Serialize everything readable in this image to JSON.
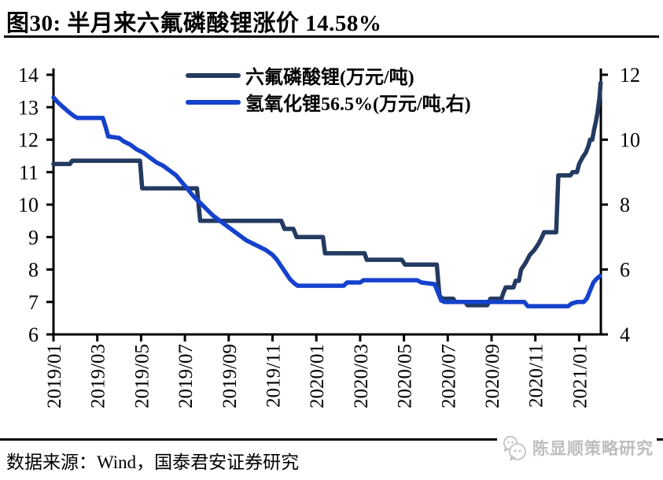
{
  "page": {
    "title": "图30: 半月来六氟磷酸锂涨价 14.58%",
    "source_note": "数据来源：Wind，国泰君安证券研究",
    "watermark": "陈显顺策略研究"
  },
  "colors": {
    "series_lipf6": "#243a60",
    "series_lioh": "#1542cc",
    "axis": "#000000",
    "watermark_gray": "#bdbdbd"
  },
  "chart_data": {
    "type": "line",
    "title": "图30: 半月来六氟磷酸锂涨价 14.58%",
    "xlabel": "",
    "ylabel_left": "万元/吨",
    "ylabel_right": "万元/吨",
    "grid": false,
    "legend_position": "top-center",
    "x_tick_labels": [
      "2019/01",
      "2019/03",
      "2019/05",
      "2019/07",
      "2019/09",
      "2019/11",
      "2020/01",
      "2020/03",
      "2020/05",
      "2020/07",
      "2020/09",
      "2020/11",
      "2021/01"
    ],
    "y_left": {
      "ticks": [
        14,
        13,
        12,
        11,
        10,
        9,
        8,
        7,
        6
      ],
      "range": [
        6,
        14
      ]
    },
    "y_right": {
      "ticks": [
        12,
        10,
        8,
        6,
        4
      ],
      "range": [
        4,
        12
      ]
    },
    "series": [
      {
        "name": "六氟磷酸锂(万元/吨)",
        "axis": "left",
        "color": "#243a60",
        "points": [
          [
            0,
            11.25
          ],
          [
            0.75,
            11.25
          ],
          [
            0.85,
            11.35
          ],
          [
            3.95,
            11.35
          ],
          [
            4.05,
            10.5
          ],
          [
            6.55,
            10.5
          ],
          [
            6.7,
            9.5
          ],
          [
            10.4,
            9.5
          ],
          [
            10.55,
            9.25
          ],
          [
            10.95,
            9.25
          ],
          [
            11.1,
            9.0
          ],
          [
            12.3,
            9.0
          ],
          [
            12.4,
            8.5
          ],
          [
            14.2,
            8.5
          ],
          [
            14.3,
            8.3
          ],
          [
            15.9,
            8.3
          ],
          [
            16.05,
            8.15
          ],
          [
            17.5,
            8.15
          ],
          [
            17.62,
            7.2
          ],
          [
            17.75,
            7.1
          ],
          [
            18.25,
            7.1
          ],
          [
            18.35,
            7.0
          ],
          [
            18.8,
            7.0
          ],
          [
            18.9,
            6.9
          ],
          [
            19.8,
            6.9
          ],
          [
            19.95,
            7.1
          ],
          [
            20.45,
            7.1
          ],
          [
            20.55,
            7.3
          ],
          [
            20.65,
            7.45
          ],
          [
            21.0,
            7.45
          ],
          [
            21.1,
            7.65
          ],
          [
            21.25,
            7.65
          ],
          [
            21.35,
            8.0
          ],
          [
            21.55,
            8.2
          ],
          [
            21.75,
            8.45
          ],
          [
            21.95,
            8.6
          ],
          [
            22.15,
            8.8
          ],
          [
            22.3,
            9.0
          ],
          [
            22.4,
            9.15
          ],
          [
            22.95,
            9.15
          ],
          [
            23.05,
            10.9
          ],
          [
            23.6,
            10.9
          ],
          [
            23.7,
            11.0
          ],
          [
            23.9,
            11.0
          ],
          [
            24.0,
            11.25
          ],
          [
            24.15,
            11.45
          ],
          [
            24.3,
            11.6
          ],
          [
            24.42,
            11.8
          ],
          [
            24.5,
            12.0
          ],
          [
            24.6,
            12.0
          ],
          [
            24.68,
            12.3
          ],
          [
            24.76,
            12.55
          ],
          [
            24.83,
            12.8
          ],
          [
            24.88,
            13.05
          ],
          [
            24.93,
            13.3
          ],
          [
            24.98,
            13.75
          ]
        ]
      },
      {
        "name": "氢氧化锂56.5%(万元/吨,右)",
        "axis": "right",
        "color": "#1542cc",
        "points": [
          [
            0,
            11.3
          ],
          [
            0.2,
            11.15
          ],
          [
            0.45,
            11.0
          ],
          [
            0.7,
            10.85
          ],
          [
            0.95,
            10.72
          ],
          [
            1.1,
            10.67
          ],
          [
            2.25,
            10.67
          ],
          [
            2.4,
            10.35
          ],
          [
            2.5,
            10.1
          ],
          [
            3.0,
            10.05
          ],
          [
            3.2,
            9.95
          ],
          [
            3.5,
            9.85
          ],
          [
            3.8,
            9.7
          ],
          [
            4.1,
            9.6
          ],
          [
            4.4,
            9.45
          ],
          [
            4.7,
            9.3
          ],
          [
            5.0,
            9.2
          ],
          [
            5.3,
            9.05
          ],
          [
            5.6,
            8.9
          ],
          [
            5.85,
            8.7
          ],
          [
            6.1,
            8.5
          ],
          [
            6.4,
            8.25
          ],
          [
            6.7,
            8.05
          ],
          [
            7.0,
            7.85
          ],
          [
            7.3,
            7.65
          ],
          [
            7.6,
            7.5
          ],
          [
            7.9,
            7.35
          ],
          [
            8.2,
            7.2
          ],
          [
            8.5,
            7.05
          ],
          [
            8.8,
            6.9
          ],
          [
            9.1,
            6.8
          ],
          [
            9.4,
            6.7
          ],
          [
            9.7,
            6.6
          ],
          [
            10.0,
            6.45
          ],
          [
            10.2,
            6.3
          ],
          [
            10.4,
            6.1
          ],
          [
            10.6,
            5.9
          ],
          [
            10.8,
            5.7
          ],
          [
            11.0,
            5.57
          ],
          [
            11.15,
            5.5
          ],
          [
            13.25,
            5.5
          ],
          [
            13.4,
            5.6
          ],
          [
            14.0,
            5.6
          ],
          [
            14.15,
            5.67
          ],
          [
            16.6,
            5.67
          ],
          [
            16.8,
            5.6
          ],
          [
            17.4,
            5.55
          ],
          [
            17.55,
            5.3
          ],
          [
            17.7,
            5.05
          ],
          [
            17.85,
            5.0
          ],
          [
            21.5,
            5.0
          ],
          [
            21.65,
            4.87
          ],
          [
            23.5,
            4.87
          ],
          [
            23.65,
            4.95
          ],
          [
            23.9,
            5.0
          ],
          [
            24.2,
            5.0
          ],
          [
            24.35,
            5.1
          ],
          [
            24.5,
            5.35
          ],
          [
            24.65,
            5.6
          ],
          [
            24.8,
            5.72
          ],
          [
            24.95,
            5.8
          ]
        ]
      }
    ]
  }
}
